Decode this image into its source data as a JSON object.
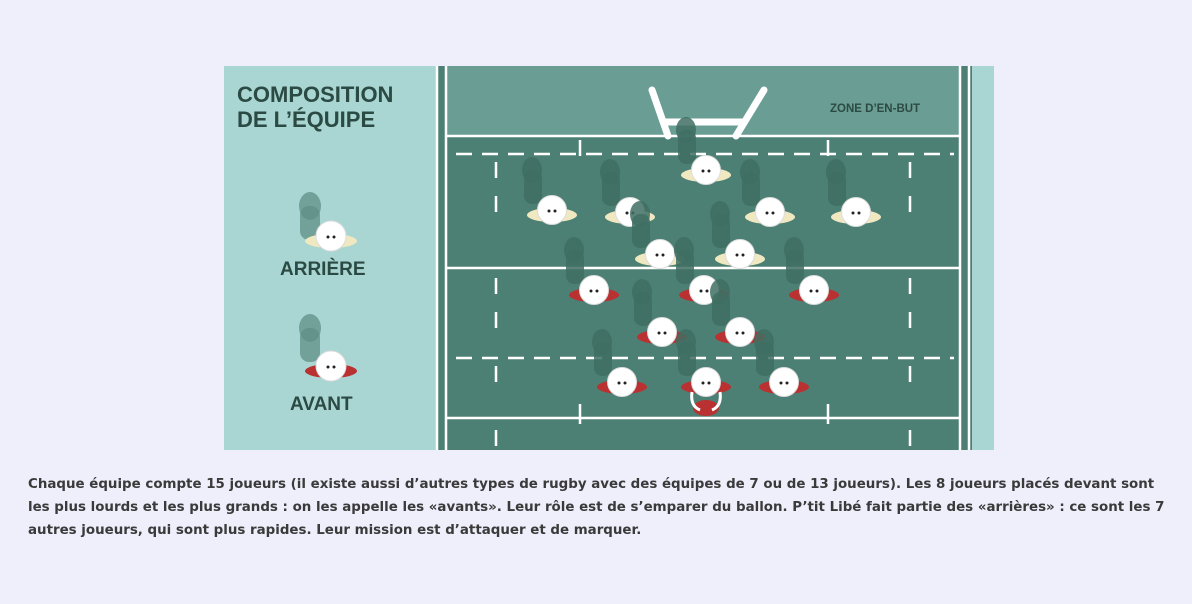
{
  "illustration": {
    "title_line1": "COMPOSITION",
    "title_line2": "DE L’ÉQUIPE",
    "zone_label": "ZONE D’EN-BUT",
    "legend": {
      "arriere_label": "ARRIÈRE",
      "avant_label": "AVANT"
    },
    "colors": {
      "panel": "#a9d6d2",
      "field": "#4d8075",
      "field_end": "#6a9e94",
      "lines": "#ffffff",
      "arriere_base": "#f0e8c0",
      "avant_base": "#b93131",
      "shadow": "#3f6e63"
    }
  },
  "caption": {
    "text": "Chaque équipe compte 15 joueurs (il existe aussi d’autres types de rugby avec des équipes de 7 ou de 13 joueurs). Les 8 joueurs placés devant sont les plus lourds et les plus grands : on les appelle les «avants». Leur rôle est de s’emparer du ballon. P’tit Libé fait partie des «arrières» : ce sont les 7 autres joueurs, qui sont plus rapides. Leur mission est d’attaquer et de marquer."
  }
}
